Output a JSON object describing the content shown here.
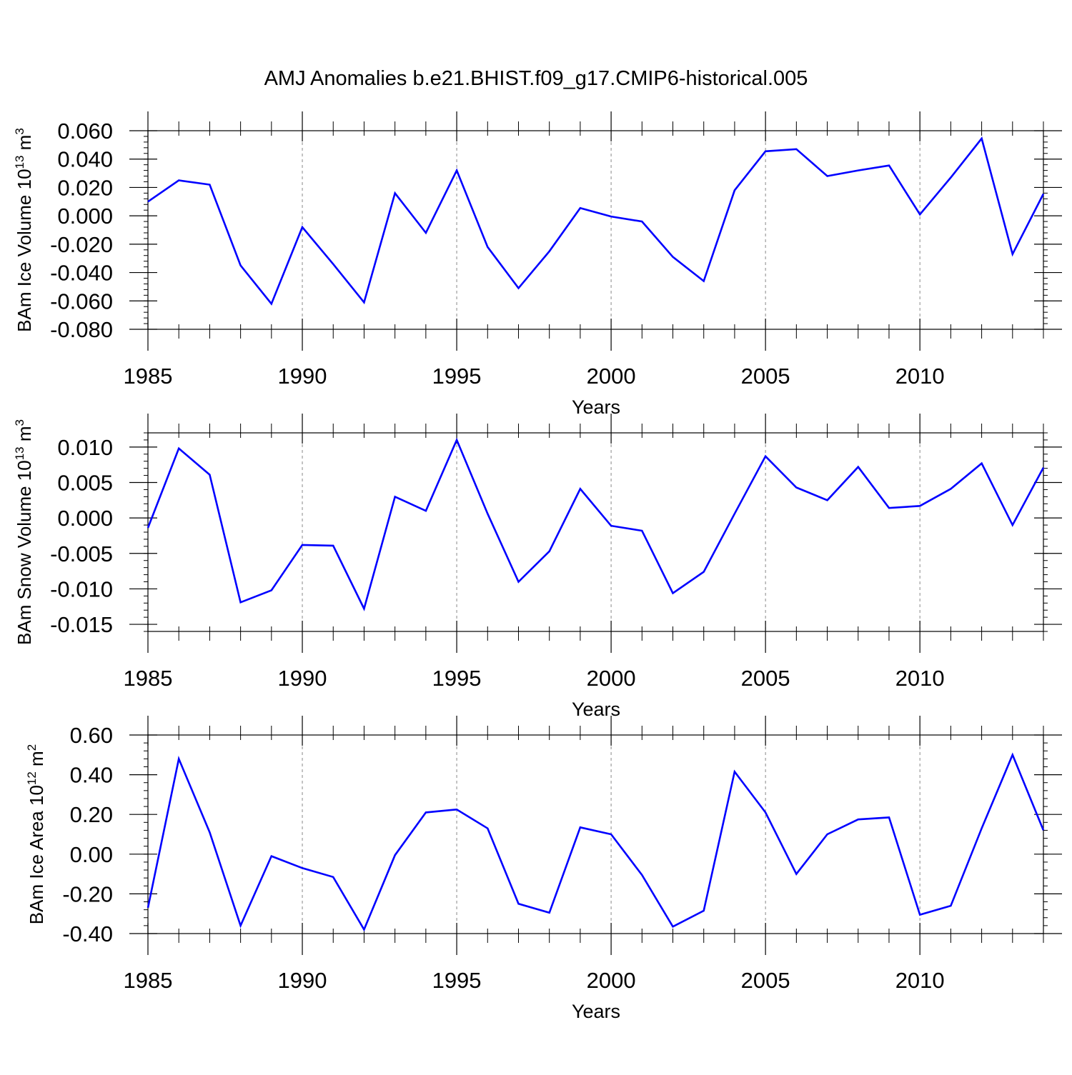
{
  "figure": {
    "title": "AMJ Anomalies b.e21.BHIST.f09_g17.CMIP6-historical.005",
    "line_color": "#0000ff",
    "grid_color": "#888888"
  },
  "chart_data": [
    {
      "type": "line",
      "title": "AMJ Anomalies b.e21.BHIST.f09_g17.CMIP6-historical.005",
      "ylabel_main": "BAm Ice Volume 10",
      "ylabel_exp": "13",
      "ylabel_unit": " m",
      "ylabel_unit_exp": "3",
      "xlabel": "Years",
      "xlim": [
        1985,
        2014
      ],
      "ylim": [
        -0.08,
        0.06
      ],
      "x_ticks": [
        1985,
        1990,
        1995,
        2000,
        2005,
        2010
      ],
      "x_tick_labels": [
        "1985",
        "1990",
        "1995",
        "2000",
        "2005",
        "2010"
      ],
      "y_ticks": [
        0.06,
        0.04,
        0.02,
        0.0,
        -0.02,
        -0.04,
        -0.06,
        -0.08
      ],
      "y_tick_labels": [
        "0.060",
        "0.040",
        "0.020",
        "0.000",
        "-0.020",
        "-0.040",
        "-0.060",
        "-0.080"
      ],
      "y_minor_step": 0.004,
      "grid": "dashed vertical at major x ticks",
      "x": [
        1985,
        1986,
        1987,
        1988,
        1989,
        1990,
        1991,
        1992,
        1993,
        1994,
        1995,
        1996,
        1997,
        1998,
        1999,
        2000,
        2001,
        2002,
        2003,
        2004,
        2005,
        2006,
        2007,
        2008,
        2009,
        2010,
        2011,
        2012,
        2013,
        2014
      ],
      "series": [
        {
          "name": "BAm Ice Volume",
          "values": [
            0.01,
            0.025,
            0.022,
            -0.035,
            -0.062,
            -0.008,
            -0.034,
            -0.061,
            0.016,
            -0.012,
            0.032,
            -0.022,
            -0.051,
            -0.025,
            0.0055,
            -0.0005,
            -0.004,
            -0.029,
            -0.046,
            0.018,
            0.0455,
            0.047,
            0.028,
            0.032,
            0.0355,
            0.001,
            0.027,
            0.0545,
            -0.027,
            0.0155
          ]
        }
      ]
    },
    {
      "type": "line",
      "ylabel_main": "BAm Snow Volume 10",
      "ylabel_exp": "13",
      "ylabel_unit": " m",
      "ylabel_unit_exp": "3",
      "xlabel": "Years",
      "xlim": [
        1985,
        2014
      ],
      "ylim": [
        -0.016,
        0.012
      ],
      "x_ticks": [
        1985,
        1990,
        1995,
        2000,
        2005,
        2010
      ],
      "x_tick_labels": [
        "1985",
        "1990",
        "1995",
        "2000",
        "2005",
        "2010"
      ],
      "y_ticks": [
        0.01,
        0.005,
        0.0,
        -0.005,
        -0.01,
        -0.015
      ],
      "y_tick_labels": [
        "0.010",
        "0.005",
        "0.000",
        "-0.005",
        "-0.010",
        "-0.015"
      ],
      "y_minor_step": 0.001,
      "grid": "dashed vertical at major x ticks",
      "x": [
        1985,
        1986,
        1987,
        1988,
        1989,
        1990,
        1991,
        1992,
        1993,
        1994,
        1995,
        1996,
        1997,
        1998,
        1999,
        2000,
        2001,
        2002,
        2003,
        2004,
        2005,
        2006,
        2007,
        2008,
        2009,
        2010,
        2011,
        2012,
        2013,
        2014
      ],
      "series": [
        {
          "name": "BAm Snow Volume",
          "values": [
            -0.0014,
            0.0098,
            0.0061,
            -0.0119,
            -0.0102,
            -0.0038,
            -0.0039,
            -0.0128,
            0.003,
            0.001,
            0.011,
            0.0006,
            -0.009,
            -0.0047,
            0.0041,
            -0.0011,
            -0.0018,
            -0.0106,
            -0.0076,
            0.0006,
            0.0087,
            0.0043,
            0.0025,
            0.0072,
            0.0014,
            0.0017,
            0.0041,
            0.0077,
            -0.001,
            0.0071
          ]
        }
      ]
    },
    {
      "type": "line",
      "ylabel_main": "BAm Ice Area 10",
      "ylabel_exp": "12",
      "ylabel_unit": " m",
      "ylabel_unit_exp": "2",
      "xlabel": "Years",
      "xlim": [
        1985,
        2014
      ],
      "ylim": [
        -0.4,
        0.6
      ],
      "x_ticks": [
        1985,
        1990,
        1995,
        2000,
        2005,
        2010
      ],
      "x_tick_labels": [
        "1985",
        "1990",
        "1995",
        "2000",
        "2005",
        "2010"
      ],
      "y_ticks": [
        0.6,
        0.4,
        0.2,
        0.0,
        -0.2,
        -0.4
      ],
      "y_tick_labels": [
        "0.60",
        "0.40",
        "0.20",
        "0.00",
        "-0.20",
        "-0.40"
      ],
      "y_minor_step": 0.04,
      "grid": "dashed vertical at major x ticks",
      "x": [
        1985,
        1986,
        1987,
        1988,
        1989,
        1990,
        1991,
        1992,
        1993,
        1994,
        1995,
        1996,
        1997,
        1998,
        1999,
        2000,
        2001,
        2002,
        2003,
        2004,
        2005,
        2006,
        2007,
        2008,
        2009,
        2010,
        2011,
        2012,
        2013,
        2014
      ],
      "series": [
        {
          "name": "BAm Ice Area",
          "values": [
            -0.27,
            0.48,
            0.11,
            -0.36,
            -0.01,
            -0.07,
            -0.115,
            -0.38,
            -0.005,
            0.21,
            0.225,
            0.13,
            -0.25,
            -0.295,
            0.135,
            0.1,
            -0.105,
            -0.365,
            -0.285,
            0.415,
            0.21,
            -0.1,
            0.1,
            0.175,
            0.185,
            -0.305,
            -0.26,
            0.13,
            0.5,
            0.12
          ]
        }
      ]
    }
  ]
}
